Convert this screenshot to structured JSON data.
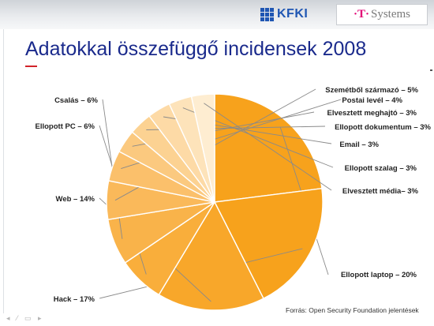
{
  "header": {
    "kfki_logo_text": "KFKI",
    "tsystems_mark": "·T·",
    "tsystems_text": "Systems"
  },
  "title": "Adatokkal összefüggő incidensek 2008",
  "source": "Forrás: Open Security Foundation jelentések",
  "chart_data": {
    "type": "pie",
    "start_angle_deg": 90,
    "direction": "clockwise",
    "slices": [
      {
        "label": "Ellopott laptop – 20%",
        "value": 20,
        "color": "#f7a21c"
      },
      {
        "label": "Hack – 17%",
        "value": 17,
        "color": "#f7a21c"
      },
      {
        "label": "Web – 14%",
        "value": 14,
        "color": "#f8a72a"
      },
      {
        "label": "Ellopott PC – 6%",
        "value": 6,
        "color": "#f9ae3b"
      },
      {
        "label": "Csalás – 6%",
        "value": 6,
        "color": "#f9b34a"
      },
      {
        "label": "Szemétből származó – 5%",
        "value": 5,
        "color": "#fab95a"
      },
      {
        "label": "Postai levél – 4%",
        "value": 4,
        "color": "#fbc06b"
      },
      {
        "label": "Elvesztett meghajtó – 3%",
        "value": 3,
        "color": "#fbc97f"
      },
      {
        "label": "Ellopott dokumentum – 3%",
        "value": 3,
        "color": "#fcd292"
      },
      {
        "label": "Email – 3%",
        "value": 3,
        "color": "#fddaa6"
      },
      {
        "label": "Ellopott szalag – 3%",
        "value": 3,
        "color": "#fde3ba"
      },
      {
        "label": "Elvesztett média– 3%",
        "value": 3,
        "color": "#feedd1"
      }
    ]
  }
}
